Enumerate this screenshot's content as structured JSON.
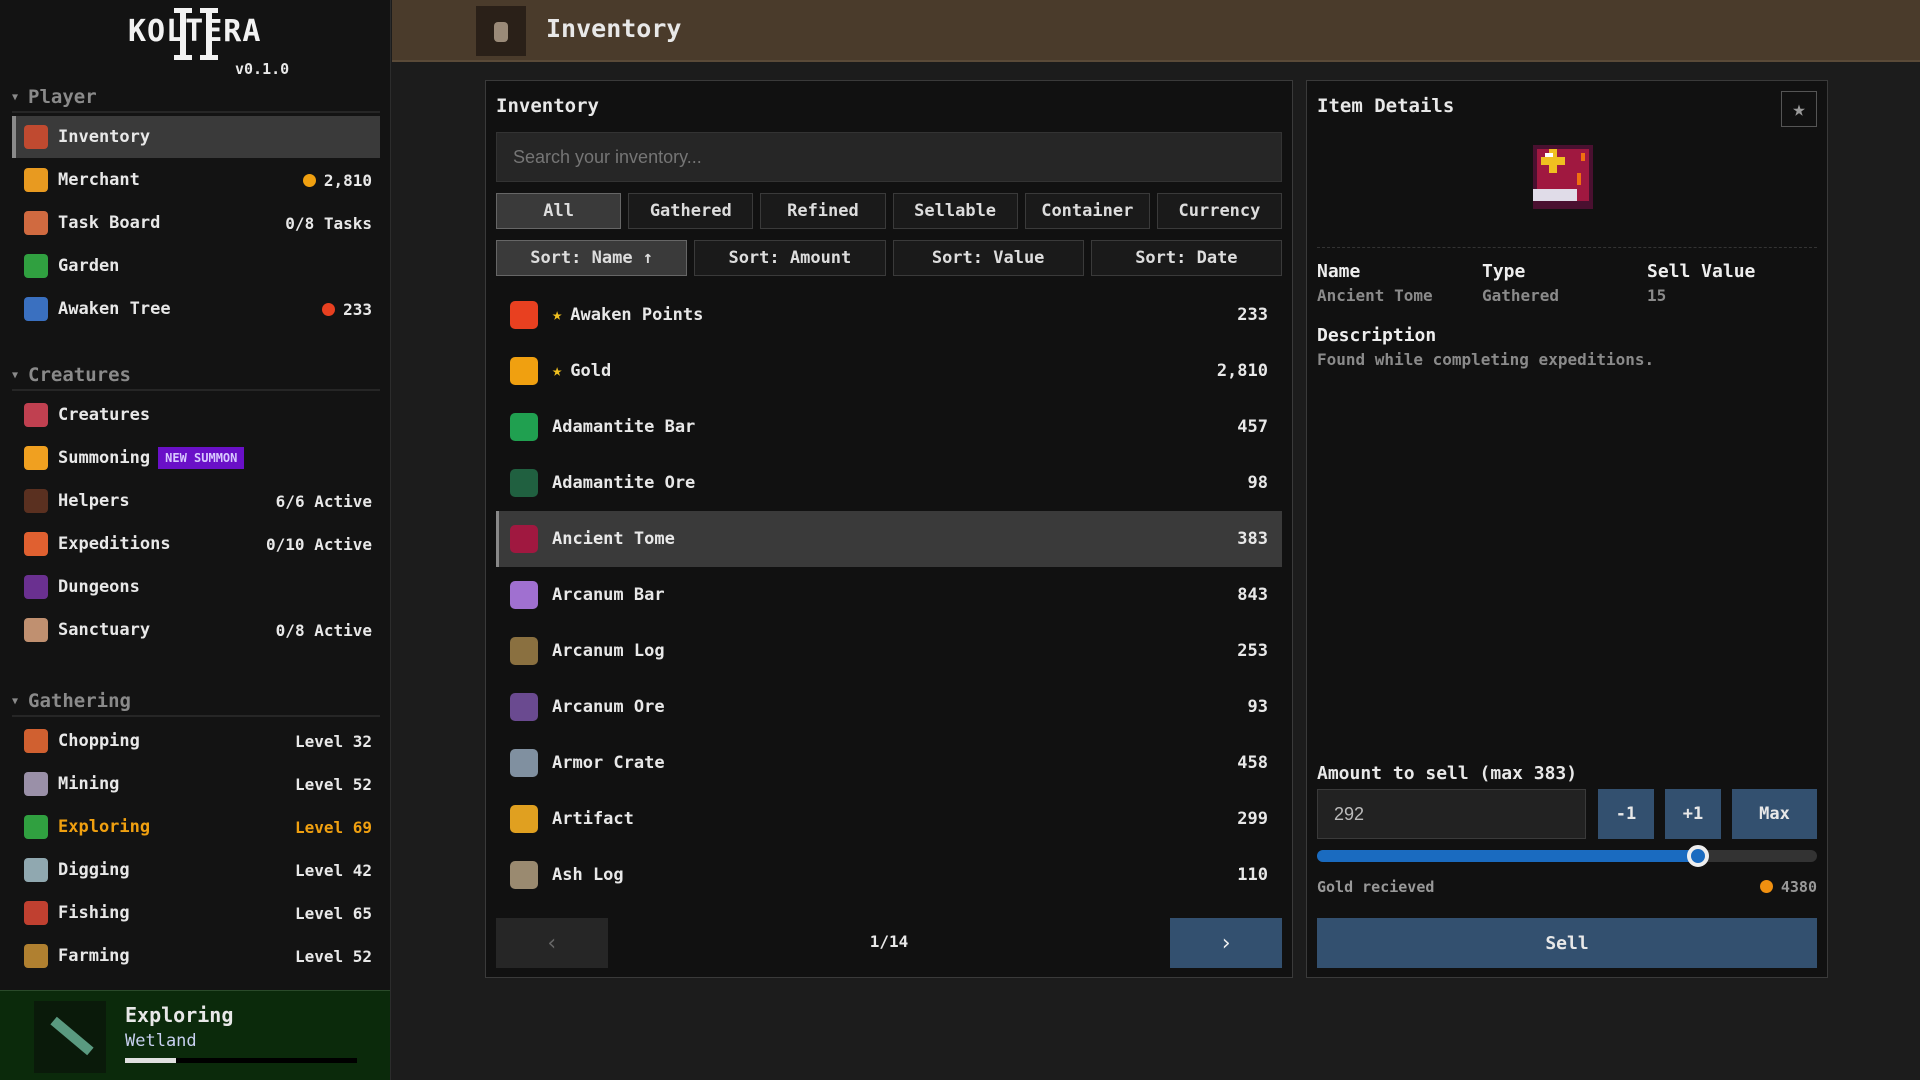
{
  "app": {
    "logo": "KOLTERA",
    "logo_numeral": "II",
    "version": "v0.1.0"
  },
  "colors": {
    "accent_blue": "#33506f",
    "active_orange": "#f0a010",
    "badge_purple": "#6a10c8",
    "header_brown": "#4a3b2b"
  },
  "sidebar": {
    "sections": [
      {
        "title": "Player",
        "items": [
          {
            "label": "Inventory",
            "value": "",
            "icon": "backpack-icon",
            "color": "#c04a30",
            "active": true
          },
          {
            "label": "Merchant",
            "value": "2,810",
            "coin": "#f0a010",
            "icon": "coins-icon",
            "color": "#e89a20"
          },
          {
            "label": "Task Board",
            "value": "0/8 Tasks",
            "icon": "scroll-icon",
            "color": "#d06a40"
          },
          {
            "label": "Garden",
            "value": "",
            "icon": "rose-icon",
            "color": "#30a040"
          },
          {
            "label": "Awaken Tree",
            "value": "233",
            "coin": "#e84020",
            "icon": "books-icon",
            "color": "#3a70c0"
          }
        ]
      },
      {
        "title": "Creatures",
        "items": [
          {
            "label": "Creatures",
            "value": "",
            "icon": "mushroom-icon",
            "color": "#c04050"
          },
          {
            "label": "Summoning",
            "value": "",
            "badge": "NEW SUMMON",
            "icon": "star-icon",
            "color": "#f0a020"
          },
          {
            "label": "Helpers",
            "value": "6/6 Active",
            "icon": "helper-icon",
            "color": "#5a3020"
          },
          {
            "label": "Expeditions",
            "value": "0/10 Active",
            "icon": "map-icon",
            "color": "#e06030"
          },
          {
            "label": "Dungeons",
            "value": "",
            "icon": "dungeon-icon",
            "color": "#6a3090"
          },
          {
            "label": "Sanctuary",
            "value": "0/8 Active",
            "icon": "church-icon",
            "color": "#c09070"
          }
        ]
      },
      {
        "title": "Gathering",
        "items": [
          {
            "label": "Chopping",
            "value": "Level 32",
            "icon": "log-icon",
            "color": "#d06030"
          },
          {
            "label": "Mining",
            "value": "Level 52",
            "icon": "gem-icon",
            "color": "#9a90a8"
          },
          {
            "label": "Exploring",
            "value": "Level 69",
            "icon": "leaf-icon",
            "color": "#30a040",
            "current": true
          },
          {
            "label": "Digging",
            "value": "Level 42",
            "icon": "mound-icon",
            "color": "#90a8b0"
          },
          {
            "label": "Fishing",
            "value": "Level 65",
            "icon": "fish-icon",
            "color": "#c04030"
          },
          {
            "label": "Farming",
            "value": "Level 52",
            "icon": "farm-icon",
            "color": "#b08030"
          }
        ]
      }
    ],
    "activity": {
      "title": "Exploring",
      "location": "Wetland",
      "progress_percent": 22
    }
  },
  "header": {
    "title": "Inventory"
  },
  "inventory": {
    "title": "Inventory",
    "search_placeholder": "Search your inventory...",
    "filters": [
      "All",
      "Gathered",
      "Refined",
      "Sellable",
      "Container",
      "Currency"
    ],
    "active_filter": 0,
    "sorts": [
      "Sort: Name ↑",
      "Sort: Amount",
      "Sort: Value",
      "Sort: Date"
    ],
    "active_sort": 0,
    "items": [
      {
        "name": "Awaken Points",
        "amount": "233",
        "starred": true,
        "icon": "awaken-point-icon",
        "color": "#e84020"
      },
      {
        "name": "Gold",
        "amount": "2,810",
        "starred": true,
        "icon": "gold-coin-icon",
        "color": "#f0a010"
      },
      {
        "name": "Adamantite Bar",
        "amount": "457",
        "icon": "adamantite-bar-icon",
        "color": "#20a050"
      },
      {
        "name": "Adamantite Ore",
        "amount": "98",
        "icon": "adamantite-ore-icon",
        "color": "#206040"
      },
      {
        "name": "Ancient Tome",
        "amount": "383",
        "icon": "ancient-tome-icon",
        "color": "#a01840",
        "selected": true
      },
      {
        "name": "Arcanum Bar",
        "amount": "843",
        "icon": "arcanum-bar-icon",
        "color": "#a070d0"
      },
      {
        "name": "Arcanum Log",
        "amount": "253",
        "icon": "arcanum-log-icon",
        "color": "#8a7040"
      },
      {
        "name": "Arcanum Ore",
        "amount": "93",
        "icon": "arcanum-ore-icon",
        "color": "#6a4a90"
      },
      {
        "name": "Armor Crate",
        "amount": "458",
        "icon": "armor-crate-icon",
        "color": "#8090a0"
      },
      {
        "name": "Artifact",
        "amount": "299",
        "icon": "artifact-icon",
        "color": "#e0a020"
      },
      {
        "name": "Ash Log",
        "amount": "110",
        "icon": "ash-log-icon",
        "color": "#9a8a70"
      }
    ],
    "page": "1/14",
    "prev": "‹",
    "next": "›"
  },
  "details": {
    "title": "Item Details",
    "fav_icon": "★",
    "name_label": "Name",
    "name": "Ancient Tome",
    "type_label": "Type",
    "type": "Gathered",
    "value_label": "Sell Value",
    "value": "15",
    "desc_label": "Description",
    "description": "Found while completing expeditions.",
    "amount_label": "Amount to sell (max 383)",
    "amount": "292",
    "max": 383,
    "minus": "-1",
    "plus": "+1",
    "max_label": "Max",
    "gold_label": "Gold recieved",
    "gold": "4380",
    "sell": "Sell"
  }
}
